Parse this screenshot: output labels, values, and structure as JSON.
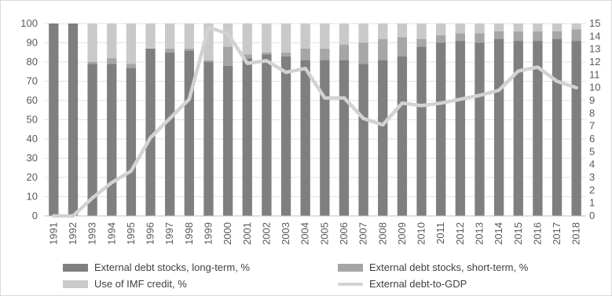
{
  "chart_data": {
    "type": "bar",
    "stacked": true,
    "categories": [
      "1991",
      "1992",
      "1993",
      "1994",
      "1995",
      "1996",
      "1997",
      "1998",
      "1999",
      "2000",
      "2001",
      "2002",
      "2003",
      "2004",
      "2005",
      "2006",
      "2007",
      "2008",
      "2009",
      "2010",
      "2011",
      "2012",
      "2013",
      "2014",
      "2015",
      "2016",
      "2017",
      "2018"
    ],
    "series": [
      {
        "name": "External debt stocks, long-term, %",
        "color": "#7f7f7f",
        "values": [
          100,
          100,
          79,
          79,
          77,
          87,
          85,
          86,
          80,
          78,
          82,
          84,
          83,
          81,
          81,
          81,
          79,
          81,
          83,
          88,
          90,
          91,
          90,
          92,
          91,
          91,
          92,
          91
        ]
      },
      {
        "name": "External debt stocks, short-term, %",
        "color": "#a6a6a6",
        "values": [
          0,
          0,
          1,
          3,
          2,
          0,
          2,
          1,
          1,
          10,
          2,
          1,
          2,
          6,
          6,
          8,
          11,
          11,
          10,
          4,
          4,
          4,
          5,
          4,
          5,
          5,
          4,
          6
        ]
      },
      {
        "name": "Use of IMF credit, %",
        "color": "#c9c9c9",
        "values": [
          0,
          0,
          20,
          18,
          21,
          13,
          13,
          13,
          19,
          12,
          16,
          15,
          15,
          13,
          13,
          11,
          10,
          8,
          7,
          8,
          6,
          5,
          5,
          4,
          4,
          4,
          4,
          3
        ]
      }
    ],
    "line_series": {
      "name": "External debt-to-GDP",
      "color": "#d2d2d2",
      "axis": "right",
      "values": [
        0,
        0,
        1.4,
        2.6,
        3.5,
        6.1,
        7.6,
        9.1,
        14.7,
        14.2,
        11.9,
        12.1,
        11.2,
        11.5,
        9.2,
        9.2,
        7.6,
        7.1,
        8.8,
        8.6,
        8.8,
        9.1,
        9.4,
        9.8,
        11.3,
        11.6,
        10.5,
        10
      ]
    },
    "y_left": {
      "min": 0,
      "max": 100,
      "step": 10
    },
    "y_right": {
      "min": 0,
      "max": 15,
      "step": 1
    },
    "y_left_ticks": [
      "0",
      "10",
      "20",
      "30",
      "40",
      "50",
      "60",
      "70",
      "80",
      "90",
      "100"
    ],
    "y_right_ticks": [
      "0",
      "1",
      "2",
      "3",
      "4",
      "5",
      "6",
      "7",
      "8",
      "9",
      "10",
      "11",
      "12",
      "13",
      "14",
      "15"
    ],
    "grid": true,
    "legend_position": "bottom"
  }
}
